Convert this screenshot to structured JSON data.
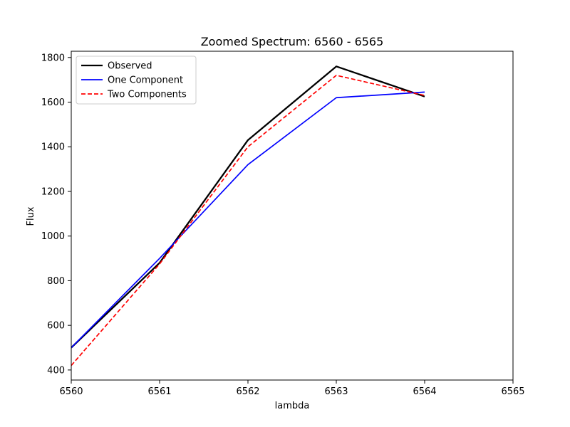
{
  "chart_data": {
    "type": "line",
    "title": "Zoomed Spectrum: 6560 - 6565",
    "xlabel": "lambda",
    "ylabel": "Flux",
    "xlim": [
      6560,
      6565
    ],
    "ylim": [
      355,
      1828
    ],
    "xticks": [
      6560,
      6561,
      6562,
      6563,
      6564,
      6565
    ],
    "yticks": [
      400,
      600,
      800,
      1000,
      1200,
      1400,
      1600,
      1800
    ],
    "grid": false,
    "legend_position": "top-left",
    "x": [
      6560,
      6561,
      6562,
      6563,
      6564
    ],
    "series": [
      {
        "name": "Observed",
        "color": "#000000",
        "dash": "solid",
        "width": 2.3,
        "values": [
          500,
          880,
          1430,
          1760,
          1625
        ]
      },
      {
        "name": "One Component",
        "color": "#0000ff",
        "dash": "solid",
        "width": 1.7,
        "values": [
          500,
          900,
          1320,
          1620,
          1645
        ]
      },
      {
        "name": "Two Components",
        "color": "#ff0000",
        "dash": "dashed",
        "width": 1.7,
        "values": [
          420,
          875,
          1400,
          1720,
          1630
        ]
      }
    ]
  }
}
